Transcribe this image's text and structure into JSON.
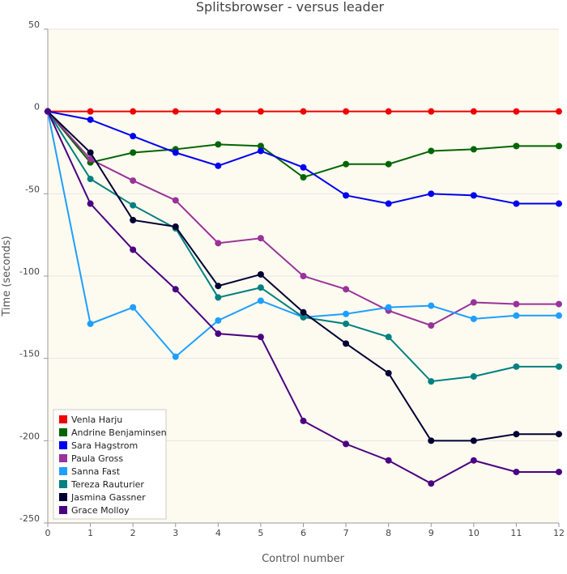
{
  "chart_data": {
    "type": "line",
    "title": "Splitsbrowser - versus leader",
    "xlabel": "Control number",
    "ylabel": "Time (seconds)",
    "ylim": [
      -250,
      50
    ],
    "yticks": [
      50,
      0,
      -50,
      -100,
      -150,
      -200,
      -250
    ],
    "x": [
      0,
      1,
      2,
      3,
      4,
      5,
      6,
      7,
      8,
      9,
      10,
      11,
      12
    ],
    "xtick_labels": [
      "0",
      "1",
      "2",
      "3",
      "4",
      "5",
      "6",
      "7",
      "8",
      "9",
      "10",
      "11",
      "12"
    ],
    "grid": "horizontal",
    "legend_position": "bottom-left",
    "colors": {
      "plot_background": "#fdfaf0",
      "grid": "#e5e5e5",
      "axis": "#999999"
    },
    "series": [
      {
        "name": "Venla Harju",
        "color": "#ee0000",
        "values": [
          0,
          0,
          0,
          0,
          0,
          0,
          0,
          0,
          0,
          0,
          0,
          0,
          0
        ]
      },
      {
        "name": "Andrine Benjaminsen",
        "color": "#006600",
        "values": [
          0,
          -31,
          -25,
          -23,
          -20,
          -21,
          -40,
          -32,
          -32,
          -24,
          -23,
          -21,
          -21
        ]
      },
      {
        "name": "Sara Hagstrom",
        "color": "#0000ee",
        "values": [
          0,
          -5,
          -15,
          -25,
          -33,
          -24,
          -34,
          -51,
          -56,
          -50,
          -51,
          -56,
          -56
        ]
      },
      {
        "name": "Paula Gross",
        "color": "#993399",
        "values": [
          0,
          -29,
          -42,
          -54,
          -80,
          -77,
          -100,
          -108,
          -121,
          -130,
          -116,
          -117,
          -117
        ]
      },
      {
        "name": "Sanna Fast",
        "color": "#1e9fff",
        "values": [
          0,
          -129,
          -119,
          -149,
          -127,
          -115,
          -125,
          -123,
          -119,
          -118,
          -126,
          -124,
          -124
        ]
      },
      {
        "name": "Tereza Rauturier",
        "color": "#008080",
        "values": [
          0,
          -41,
          -57,
          -71,
          -113,
          -107,
          -125,
          -129,
          -137,
          -164,
          -161,
          -155,
          -155
        ]
      },
      {
        "name": "Jasmina Gassner",
        "color": "#000033",
        "values": [
          0,
          -25,
          -66,
          -70,
          -106,
          -99,
          -122,
          -141,
          -159,
          -200,
          -200,
          -196,
          -196
        ]
      },
      {
        "name": "Grace Molloy",
        "color": "#4b0082",
        "values": [
          0,
          -56,
          -84,
          -108,
          -135,
          -137,
          -188,
          -202,
          -212,
          -226,
          -212,
          -219,
          -219
        ]
      }
    ]
  }
}
